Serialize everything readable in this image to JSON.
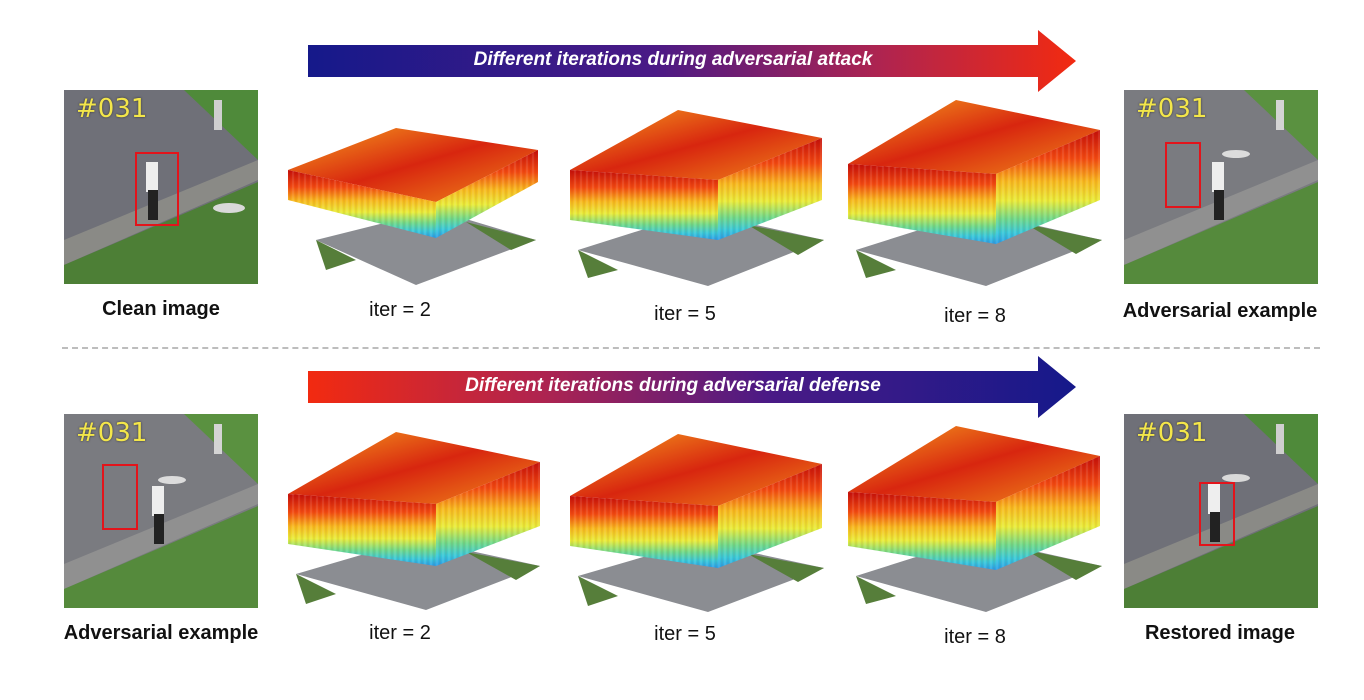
{
  "top_row": {
    "arrow_label": "Different iterations during adversarial attack",
    "left_caption": "Clean image",
    "right_caption": "Adversarial example",
    "left_frame_id": "#031",
    "right_frame_id": "#031",
    "iterations": [
      "iter = 2",
      "iter = 5",
      "iter = 8"
    ]
  },
  "bottom_row": {
    "arrow_label": "Different iterations during adversarial defense",
    "left_caption": "Adversarial example",
    "right_caption": "Restored image",
    "left_frame_id": "#031",
    "right_frame_id": "#031",
    "iterations": [
      "iter = 2",
      "iter = 5",
      "iter = 8"
    ]
  },
  "colors": {
    "arrow_blue": "#15198a",
    "arrow_red": "#f22a10",
    "bbox": "#e3141b",
    "frame_id": "#f3e64a"
  }
}
